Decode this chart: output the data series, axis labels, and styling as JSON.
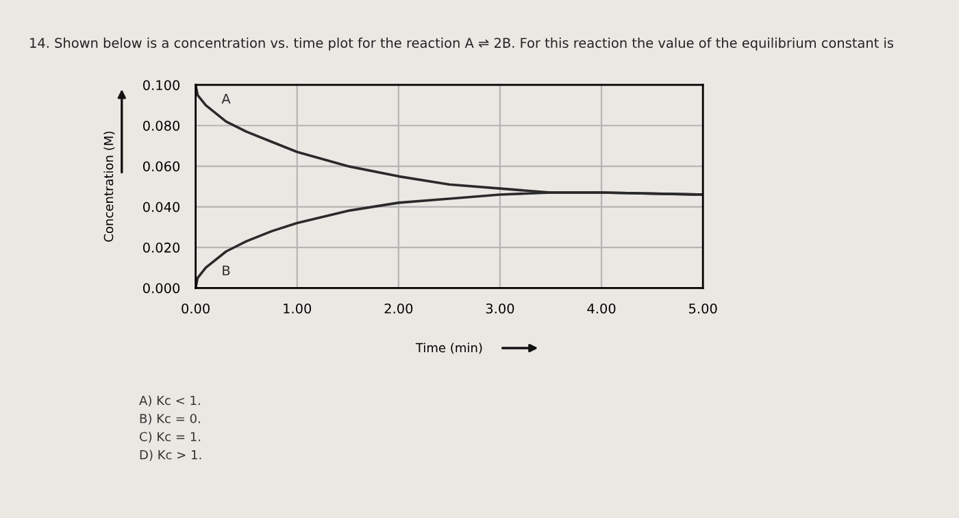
{
  "chart_data": {
    "type": "line",
    "title": "14. Shown below is a concentration vs. time plot for the reaction A ⇌ 2B. For this reaction the value of the equilibrium constant is",
    "xlabel": "Time (min)",
    "ylabel": "Concentration (M)",
    "series": [
      {
        "name": "A",
        "color": "#2a2a2a",
        "x": [
          0,
          0.02,
          0.1,
          0.3,
          0.5,
          0.75,
          1,
          1.5,
          2,
          2.5,
          3,
          3.5,
          4,
          5
        ],
        "values": [
          0.1,
          0.095,
          0.09,
          0.082,
          0.077,
          0.072,
          0.067,
          0.06,
          0.055,
          0.051,
          0.049,
          0.047,
          0.047,
          0.046
        ]
      },
      {
        "name": "B",
        "color": "#2a2a2a",
        "x": [
          0,
          0.02,
          0.1,
          0.3,
          0.5,
          0.75,
          1,
          1.5,
          2,
          2.5,
          3,
          3.5,
          4,
          5
        ],
        "values": [
          0.0,
          0.005,
          0.01,
          0.018,
          0.023,
          0.028,
          0.032,
          0.038,
          0.042,
          0.044,
          0.046,
          0.047,
          0.047,
          0.046
        ]
      }
    ],
    "xlim": [
      0,
      5
    ],
    "ylim": [
      0,
      0.1
    ],
    "xticks": [
      {
        "value": 0,
        "label": "0.00"
      },
      {
        "value": 1,
        "label": "1.00"
      },
      {
        "value": 2,
        "label": "2.00"
      },
      {
        "value": 3,
        "label": "3.00"
      },
      {
        "value": 4,
        "label": "4.00"
      },
      {
        "value": 5,
        "label": "5.00"
      }
    ],
    "yticks": [
      {
        "value": 0,
        "label": "0.000"
      },
      {
        "value": 0.02,
        "label": "0.020"
      },
      {
        "value": 0.04,
        "label": "0.040"
      },
      {
        "value": 0.06,
        "label": "0.060"
      },
      {
        "value": 0.08,
        "label": "0.080"
      },
      {
        "value": 0.1,
        "label": "0.100"
      }
    ],
    "grid": true,
    "marker": "none",
    "line_style": "solid",
    "annotations": [
      "A) Kc < 1.",
      "B) Kc = 0.",
      "C) Kc = 1.",
      "D) Kc > 1."
    ]
  }
}
